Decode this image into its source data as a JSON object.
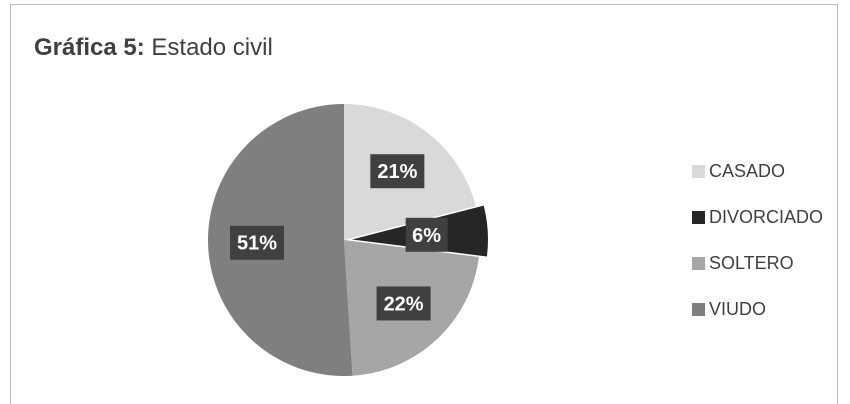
{
  "chart_data": {
    "type": "pie",
    "title_bold": "Gráfica 5:",
    "title_rest": "Estado civil",
    "categories": [
      "CASADO",
      "DIVORCIADO",
      "SOLTERO",
      "VIUDO"
    ],
    "values": [
      21,
      6,
      22,
      51
    ],
    "labels": [
      "21%",
      "6%",
      "22%",
      "51%"
    ],
    "colors": [
      "#d9d9d9",
      "#262626",
      "#a6a6a6",
      "#7f7f7f"
    ],
    "exploded": [
      false,
      true,
      false,
      false
    ],
    "legend_position": "right",
    "data_label_background": "#404040",
    "data_label_color": "#ffffff"
  }
}
